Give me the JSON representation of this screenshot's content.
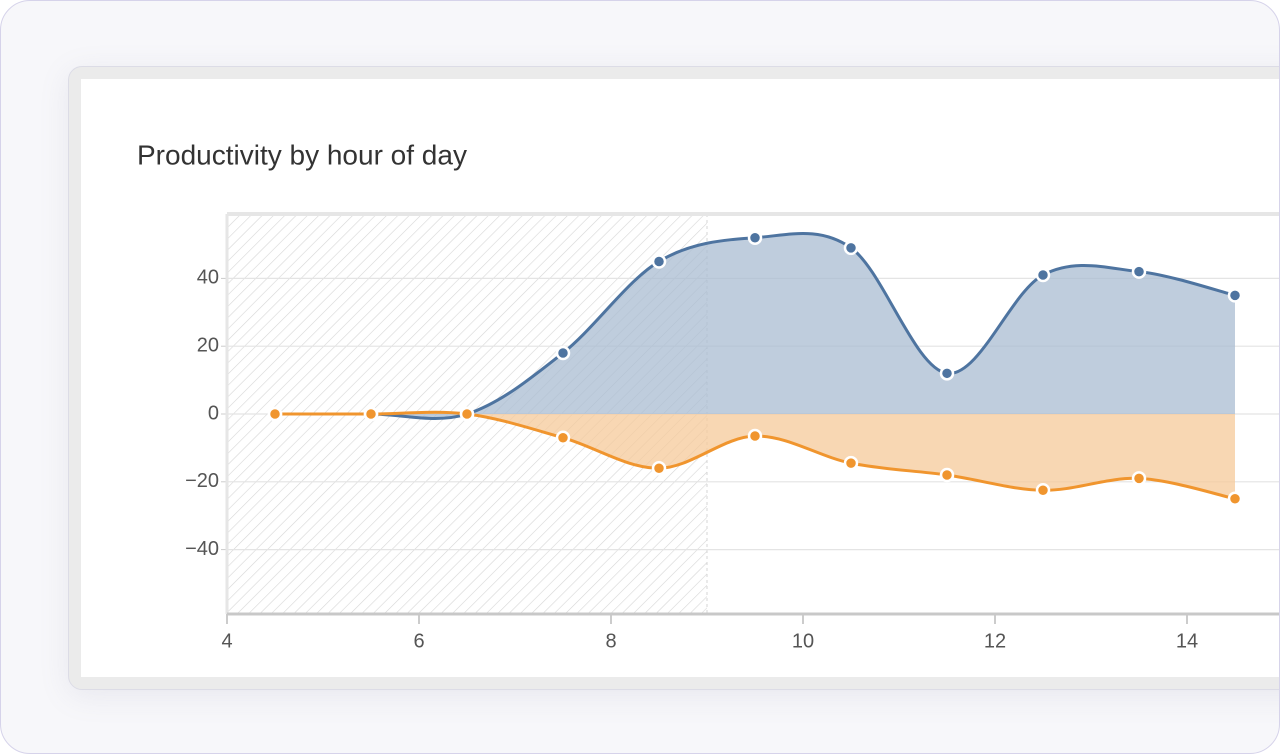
{
  "chart_data": {
    "type": "area",
    "title": "Productivity by hour of day",
    "x": [
      4.5,
      5.5,
      6.5,
      7.5,
      8.5,
      9.5,
      10.5,
      11.5,
      12.5,
      13.5,
      14.5
    ],
    "series": [
      {
        "color": "#4e74a0",
        "fill": "#a9bcd1",
        "values": [
          0,
          0,
          0,
          18,
          45,
          52,
          49,
          12,
          41,
          42,
          35
        ]
      },
      {
        "color": "#f0952e",
        "fill": "#f5c99a",
        "values": [
          0,
          0,
          0,
          -7,
          -16,
          -6.5,
          -14.5,
          -18,
          -22.5,
          -19,
          -25
        ]
      }
    ],
    "band": [
      4,
      9
    ],
    "xlim": [
      4,
      15
    ],
    "xticks": [
      4,
      6,
      8,
      10,
      12,
      14
    ],
    "ylim": [
      -59,
      59
    ],
    "yticks": [
      {
        "value": -40,
        "label": "−40"
      },
      {
        "value": -20,
        "label": "−20"
      },
      0,
      20,
      40
    ],
    "grid": true
  }
}
